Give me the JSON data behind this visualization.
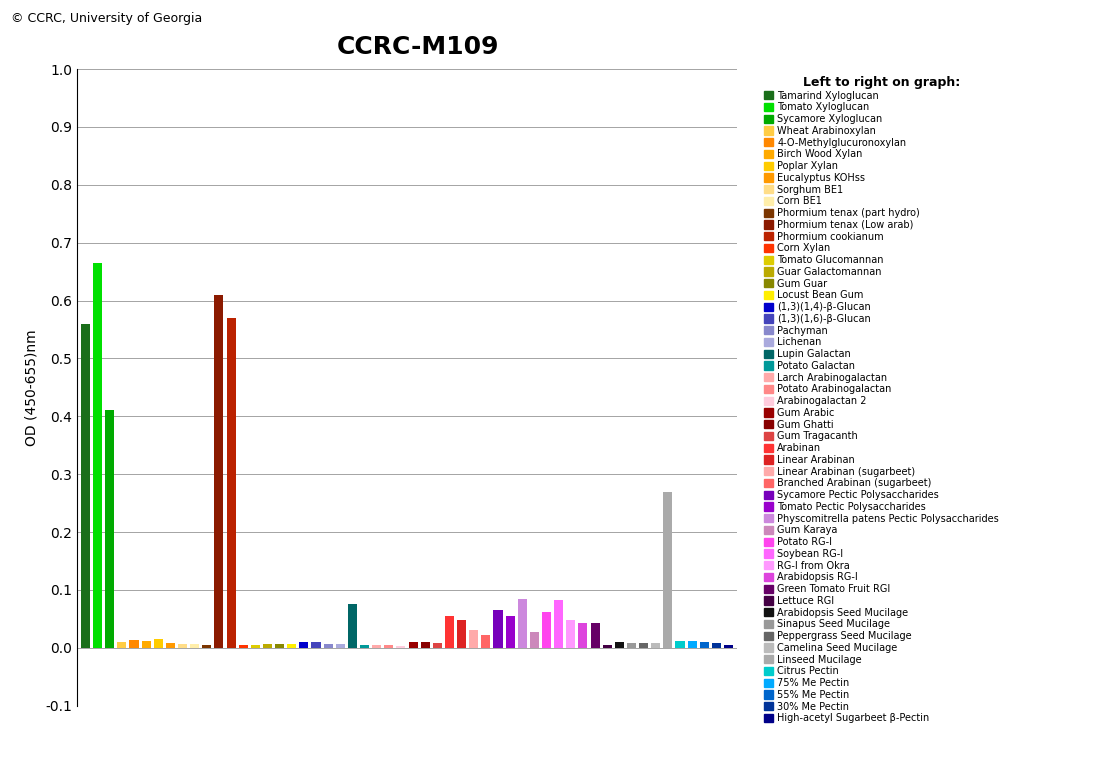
{
  "title": "CCRC-M109",
  "copyright": "© CCRC, University of Georgia",
  "ylabel": "OD (450-655)nm",
  "legend_title": "Left to right on graph:",
  "ylim": [
    -0.1,
    1.0
  ],
  "yticks": [
    -0.1,
    0.0,
    0.1,
    0.2,
    0.3,
    0.4,
    0.5,
    0.6,
    0.7,
    0.8,
    0.9,
    1.0
  ],
  "bars": [
    {
      "label": "Tamarind Xyloglucan",
      "value": 0.56,
      "color": "#1a6e1a"
    },
    {
      "label": "Tomato Xyloglucan",
      "value": 0.665,
      "color": "#00e000"
    },
    {
      "label": "Sycamore Xyloglucan",
      "value": 0.41,
      "color": "#00aa00"
    },
    {
      "label": "Wheat Arabinoxylan",
      "value": 0.01,
      "color": "#ffcc44"
    },
    {
      "label": "4-O-Methylglucuronoxylan",
      "value": 0.013,
      "color": "#ff8800"
    },
    {
      "label": "Birch Wood Xylan",
      "value": 0.012,
      "color": "#ffaa00"
    },
    {
      "label": "Poplar Xylan",
      "value": 0.015,
      "color": "#ffcc00"
    },
    {
      "label": "Eucalyptus KOHss",
      "value": 0.008,
      "color": "#ff9900"
    },
    {
      "label": "Sorghum BE1",
      "value": 0.006,
      "color": "#ffdd88"
    },
    {
      "label": "Corn BE1",
      "value": 0.006,
      "color": "#ffeeaa"
    },
    {
      "label": "Phormium tenax (part hydro)",
      "value": 0.005,
      "color": "#7b3500"
    },
    {
      "label": "Phormium tenax (Low arab)",
      "value": 0.61,
      "color": "#8b1a00"
    },
    {
      "label": "Phormium cookianum",
      "value": 0.57,
      "color": "#bb2200"
    },
    {
      "label": "Corn Xylan",
      "value": 0.005,
      "color": "#ff3300"
    },
    {
      "label": "Tomato Glucomannan",
      "value": 0.005,
      "color": "#ddcc00"
    },
    {
      "label": "Guar Galactomannan",
      "value": 0.006,
      "color": "#bbaa00"
    },
    {
      "label": "Gum Guar",
      "value": 0.007,
      "color": "#888800"
    },
    {
      "label": "Locust Bean Gum",
      "value": 0.006,
      "color": "#ffee00"
    },
    {
      "label": "(1,3)(1,4)-β-Glucan",
      "value": 0.01,
      "color": "#0000cc"
    },
    {
      "label": "(1,3)(1,6)-β-Glucan",
      "value": 0.01,
      "color": "#4444bb"
    },
    {
      "label": "Pachyman",
      "value": 0.007,
      "color": "#8888cc"
    },
    {
      "label": "Lichenan",
      "value": 0.006,
      "color": "#aaaadd"
    },
    {
      "label": "Lupin Galactan",
      "value": 0.075,
      "color": "#006666"
    },
    {
      "label": "Potato Galactan",
      "value": 0.005,
      "color": "#009999"
    },
    {
      "label": "Larch Arabinogalactan",
      "value": 0.005,
      "color": "#ffaaaa"
    },
    {
      "label": "Potato Arabinogalactan",
      "value": 0.005,
      "color": "#ff8888"
    },
    {
      "label": "Arabinogalactan 2",
      "value": 0.003,
      "color": "#ffccdd"
    },
    {
      "label": "Gum Arabic",
      "value": 0.01,
      "color": "#990000"
    },
    {
      "label": "Gum Ghatti",
      "value": 0.01,
      "color": "#880000"
    },
    {
      "label": "Gum Tragacanth",
      "value": 0.008,
      "color": "#dd4444"
    },
    {
      "label": "Arabinan",
      "value": 0.055,
      "color": "#ff3333"
    },
    {
      "label": "Linear Arabinan",
      "value": 0.048,
      "color": "#dd2222"
    },
    {
      "label": "Linear Arabinan (sugarbeet)",
      "value": 0.03,
      "color": "#ffaaaa"
    },
    {
      "label": "Branched Arabinan (sugarbeet)",
      "value": 0.022,
      "color": "#ff6666"
    },
    {
      "label": "Sycamore Pectic Polysaccharides",
      "value": 0.065,
      "color": "#7700bb"
    },
    {
      "label": "Tomato Pectic Polysaccharides",
      "value": 0.055,
      "color": "#9900cc"
    },
    {
      "label": "Physcomitrella patens Pectic Polysaccharides",
      "value": 0.085,
      "color": "#cc88dd"
    },
    {
      "label": "Gum Karaya",
      "value": 0.028,
      "color": "#cc88bb"
    },
    {
      "label": "Potato RG-I",
      "value": 0.062,
      "color": "#ff44ee"
    },
    {
      "label": "Soybean RG-I",
      "value": 0.082,
      "color": "#ff66ff"
    },
    {
      "label": "RG-I from Okra",
      "value": 0.048,
      "color": "#ff99ff"
    },
    {
      "label": "Arabidopsis RG-I",
      "value": 0.042,
      "color": "#dd44dd"
    },
    {
      "label": "Green Tomato Fruit RGI",
      "value": 0.042,
      "color": "#660066"
    },
    {
      "label": "Lettuce RGI",
      "value": 0.005,
      "color": "#440044"
    },
    {
      "label": "Arabidopsis Seed Mucilage",
      "value": 0.01,
      "color": "#111111"
    },
    {
      "label": "Sinapus Seed Mucilage",
      "value": 0.009,
      "color": "#999999"
    },
    {
      "label": "Peppergrass Seed Mucilage",
      "value": 0.009,
      "color": "#666666"
    },
    {
      "label": "Camelina Seed Mucilage",
      "value": 0.008,
      "color": "#bbbbbb"
    },
    {
      "label": "Linseed Mucilage",
      "value": 0.27,
      "color": "#aaaaaa"
    },
    {
      "label": "Citrus Pectin",
      "value": 0.012,
      "color": "#00cccc"
    },
    {
      "label": "75% Me Pectin",
      "value": 0.012,
      "color": "#00aaff"
    },
    {
      "label": "55% Me Pectin",
      "value": 0.01,
      "color": "#0066cc"
    },
    {
      "label": "30% Me Pectin",
      "value": 0.008,
      "color": "#003399"
    },
    {
      "label": "High-acetyl Sugarbeet β-Pectin",
      "value": 0.005,
      "color": "#000088"
    }
  ]
}
